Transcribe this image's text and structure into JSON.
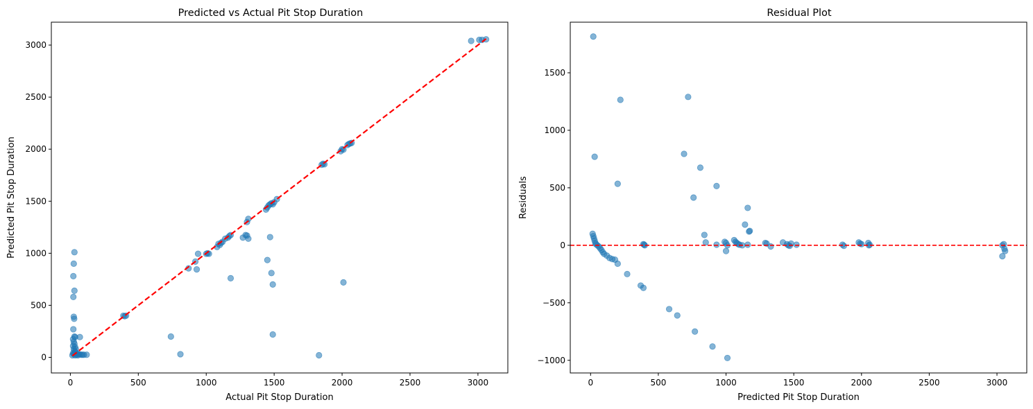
{
  "colors": {
    "point": "#1f77b4",
    "reference_line": "#ff0000",
    "axes": "#000000"
  },
  "chart_data": [
    {
      "type": "scatter",
      "title": "Predicted vs Actual Pit Stop Duration",
      "xlabel": "Actual Pit Stop Duration",
      "ylabel": "Predicted Pit Stop Duration",
      "xlim": [
        -140,
        3220
      ],
      "ylim": [
        -150,
        3220
      ],
      "xticks": [
        0,
        500,
        1000,
        1500,
        2000,
        2500,
        3000
      ],
      "yticks": [
        0,
        500,
        1000,
        1500,
        2000,
        2500,
        3000
      ],
      "grid": false,
      "reference_line": {
        "style": "dashed",
        "from": [
          15,
          15
        ],
        "to": [
          3060,
          3060
        ]
      },
      "points": [
        [
          30,
          1010
        ],
        [
          25,
          900
        ],
        [
          22,
          780
        ],
        [
          30,
          640
        ],
        [
          22,
          580
        ],
        [
          25,
          390
        ],
        [
          28,
          370
        ],
        [
          22,
          270
        ],
        [
          30,
          200
        ],
        [
          35,
          195
        ],
        [
          20,
          175
        ],
        [
          25,
          150
        ],
        [
          30,
          130
        ],
        [
          20,
          110
        ],
        [
          35,
          100
        ],
        [
          25,
          80
        ],
        [
          30,
          60
        ],
        [
          40,
          50
        ],
        [
          20,
          40
        ],
        [
          50,
          35
        ],
        [
          60,
          30
        ],
        [
          70,
          28
        ],
        [
          80,
          25
        ],
        [
          90,
          25
        ],
        [
          100,
          25
        ],
        [
          120,
          25
        ],
        [
          70,
          195
        ],
        [
          15,
          20
        ],
        [
          35,
          20
        ],
        [
          45,
          25
        ],
        [
          55,
          20
        ],
        [
          40,
          80
        ],
        [
          30,
          40
        ],
        [
          25,
          30
        ],
        [
          390,
          400
        ],
        [
          400,
          395
        ],
        [
          410,
          400
        ],
        [
          740,
          200
        ],
        [
          810,
          30
        ],
        [
          870,
          855
        ],
        [
          920,
          920
        ],
        [
          930,
          845
        ],
        [
          940,
          995
        ],
        [
          1000,
          995
        ],
        [
          1010,
          1000
        ],
        [
          1020,
          995
        ],
        [
          1080,
          1060
        ],
        [
          1090,
          1090
        ],
        [
          1100,
          1080
        ],
        [
          1110,
          1100
        ],
        [
          1120,
          1110
        ],
        [
          1140,
          1140
        ],
        [
          1160,
          1150
        ],
        [
          1170,
          1165
        ],
        [
          1180,
          1175
        ],
        [
          1180,
          760
        ],
        [
          1270,
          1150
        ],
        [
          1290,
          1175
        ],
        [
          1300,
          1300
        ],
        [
          1310,
          1330
        ],
        [
          1310,
          1140
        ],
        [
          1300,
          1170
        ],
        [
          1440,
          1420
        ],
        [
          1450,
          1440
        ],
        [
          1460,
          1460
        ],
        [
          1470,
          1470
        ],
        [
          1480,
          1480
        ],
        [
          1490,
          1470
        ],
        [
          1500,
          1490
        ],
        [
          1520,
          1520
        ],
        [
          1450,
          935
        ],
        [
          1470,
          1155
        ],
        [
          1480,
          810
        ],
        [
          1490,
          700
        ],
        [
          1490,
          220
        ],
        [
          1830,
          20
        ],
        [
          1850,
          1850
        ],
        [
          1860,
          1860
        ],
        [
          1870,
          1855
        ],
        [
          1990,
          1980
        ],
        [
          2000,
          2000
        ],
        [
          2010,
          1995
        ],
        [
          2010,
          720
        ],
        [
          2040,
          2040
        ],
        [
          2050,
          2050
        ],
        [
          2060,
          2055
        ],
        [
          2070,
          2060
        ],
        [
          2950,
          3040
        ],
        [
          3010,
          3050
        ],
        [
          3030,
          3050
        ],
        [
          3060,
          3055
        ]
      ]
    },
    {
      "type": "scatter",
      "title": "Residual Plot",
      "xlabel": "Predicted Pit Stop Duration",
      "ylabel": "Residuals",
      "xlim": [
        -150,
        3220
      ],
      "ylim": [
        -1110,
        1940
      ],
      "xticks": [
        0,
        500,
        1000,
        1500,
        2000,
        2500,
        3000
      ],
      "yticks": [
        -1000,
        -500,
        0,
        500,
        1000,
        1500
      ],
      "grid": false,
      "reference_line": {
        "style": "dashed",
        "y": 0
      },
      "points": [
        [
          20,
          1815
        ],
        [
          220,
          1265
        ],
        [
          720,
          1290
        ],
        [
          30,
          770
        ],
        [
          690,
          795
        ],
        [
          810,
          675
        ],
        [
          200,
          535
        ],
        [
          930,
          515
        ],
        [
          760,
          415
        ],
        [
          15,
          100
        ],
        [
          20,
          80
        ],
        [
          25,
          60
        ],
        [
          30,
          40
        ],
        [
          35,
          20
        ],
        [
          40,
          10
        ],
        [
          50,
          0
        ],
        [
          60,
          -10
        ],
        [
          70,
          -25
        ],
        [
          80,
          -40
        ],
        [
          90,
          -60
        ],
        [
          100,
          -75
        ],
        [
          120,
          -90
        ],
        [
          140,
          -110
        ],
        [
          160,
          -120
        ],
        [
          180,
          -125
        ],
        [
          200,
          -160
        ],
        [
          270,
          -250
        ],
        [
          370,
          -350
        ],
        [
          390,
          -370
        ],
        [
          580,
          -555
        ],
        [
          640,
          -610
        ],
        [
          770,
          -750
        ],
        [
          900,
          -880
        ],
        [
          1010,
          -980
        ],
        [
          390,
          10
        ],
        [
          400,
          0
        ],
        [
          395,
          5
        ],
        [
          840,
          90
        ],
        [
          850,
          25
        ],
        [
          930,
          5
        ],
        [
          990,
          30
        ],
        [
          1000,
          20
        ],
        [
          1000,
          -50
        ],
        [
          1010,
          0
        ],
        [
          1060,
          45
        ],
        [
          1070,
          30
        ],
        [
          1080,
          20
        ],
        [
          1090,
          10
        ],
        [
          1100,
          5
        ],
        [
          1120,
          0
        ],
        [
          1140,
          180
        ],
        [
          1160,
          325
        ],
        [
          1170,
          120
        ],
        [
          1175,
          125
        ],
        [
          1160,
          5
        ],
        [
          1290,
          20
        ],
        [
          1300,
          15
        ],
        [
          1330,
          -10
        ],
        [
          1420,
          25
        ],
        [
          1450,
          10
        ],
        [
          1460,
          0
        ],
        [
          1470,
          -5
        ],
        [
          1480,
          15
        ],
        [
          1520,
          5
        ],
        [
          1860,
          5
        ],
        [
          1870,
          -5
        ],
        [
          1980,
          25
        ],
        [
          1990,
          15
        ],
        [
          2000,
          10
        ],
        [
          2050,
          20
        ],
        [
          2055,
          0
        ],
        [
          2060,
          5
        ],
        [
          3040,
          0
        ],
        [
          3050,
          10
        ],
        [
          3055,
          -30
        ],
        [
          3060,
          -50
        ],
        [
          3040,
          -95
        ]
      ]
    }
  ]
}
